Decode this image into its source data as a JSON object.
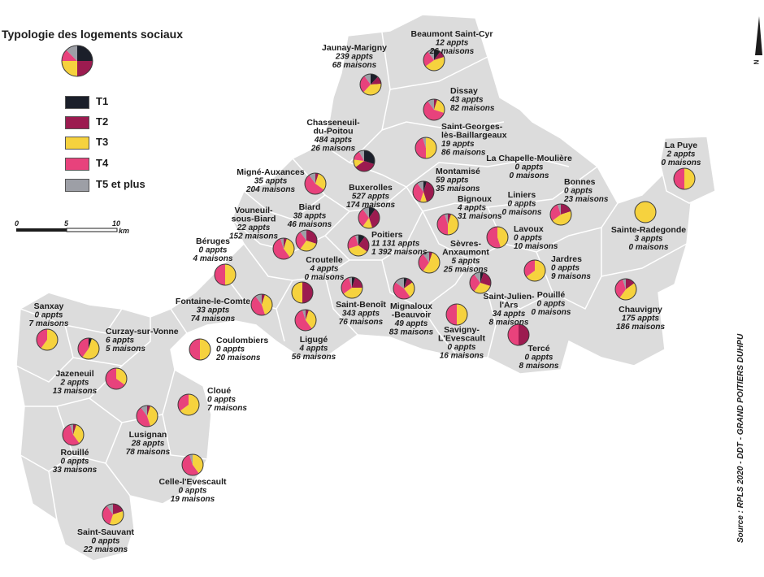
{
  "legend": {
    "title": "Typologie des logements sociaux",
    "items": [
      {
        "key": "t1",
        "label": "T1",
        "color": "#1b1f2a"
      },
      {
        "key": "t2",
        "label": "T2",
        "color": "#9c1b50"
      },
      {
        "key": "t3",
        "label": "T3",
        "color": "#f6d23e"
      },
      {
        "key": "t4",
        "label": "T4",
        "color": "#e8427c"
      },
      {
        "key": "t5",
        "label": "T5 et plus",
        "color": "#9d9fa6"
      }
    ]
  },
  "scale": {
    "ticks": [
      "0",
      "5",
      "10"
    ],
    "unit": "km"
  },
  "north": "N",
  "source": "Source : RPLS 2020 - DDT - GRAND POITIERS DUHPU",
  "colors": {
    "territory": "#dcdcdc",
    "border": "#ffffff",
    "text": "#1c1c1c"
  },
  "communes": [
    {
      "name": [
        "Jaunay-Marigny"
      ],
      "appts": "239 appts",
      "maisons": "68 maisons",
      "shares": [
        0.12,
        0.12,
        0.38,
        0.28,
        0.1
      ]
    },
    {
      "name": [
        "Beaumont Saint-Cyr"
      ],
      "appts": "12 appts",
      "maisons": "26 maisons",
      "shares": [
        0.1,
        0.1,
        0.45,
        0.25,
        0.1
      ]
    },
    {
      "name": [
        "Dissay"
      ],
      "appts": "43 appts",
      "maisons": "82 maisons",
      "shares": [
        0,
        0.05,
        0.25,
        0.6,
        0.1
      ]
    },
    {
      "name": [
        "Chasseneuil-",
        "du-Poitou"
      ],
      "appts": "484 appts",
      "maisons": "26 maisons",
      "shares": [
        0.3,
        0.35,
        0.12,
        0.15,
        0.08
      ]
    },
    {
      "name": [
        "Saint-Georges-",
        "lès-Baillargeaux"
      ],
      "appts": "19 appts",
      "maisons": "86 maisons",
      "shares": [
        0,
        0,
        0.5,
        0.45,
        0.05
      ]
    },
    {
      "name": [
        "La Chapelle-Moulière"
      ],
      "appts": "0 appts",
      "maisons": "0 maisons",
      "shares": []
    },
    {
      "name": [
        "La Puye"
      ],
      "appts": "2 appts",
      "maisons": "0 maisons",
      "shares": [
        0,
        0,
        0.5,
        0.5,
        0
      ]
    },
    {
      "name": [
        "Migné-Auxances"
      ],
      "appts": "35 appts",
      "maisons": "204 maisons",
      "shares": [
        0,
        0.05,
        0.3,
        0.55,
        0.1
      ]
    },
    {
      "name": [
        "Buxerolles"
      ],
      "appts": "527 appts",
      "maisons": "174 maisons",
      "shares": [
        0.1,
        0.35,
        0.15,
        0.3,
        0.1
      ]
    },
    {
      "name": [
        "Montamisé"
      ],
      "appts": "59 appts",
      "maisons": "35 maisons",
      "shares": [
        0.05,
        0.4,
        0.1,
        0.35,
        0.1
      ]
    },
    {
      "name": [
        "Liniers"
      ],
      "appts": "0 appts",
      "maisons": "0 maisons",
      "shares": []
    },
    {
      "name": [
        "Bonnes"
      ],
      "appts": "0 appts",
      "maisons": "23 maisons",
      "shares": [
        0,
        0.2,
        0.45,
        0.3,
        0.05
      ]
    },
    {
      "name": [
        "Biard"
      ],
      "appts": "38 appts",
      "maisons": "46 maisons",
      "shares": [
        0,
        0.3,
        0.3,
        0.3,
        0.1
      ]
    },
    {
      "name": [
        "Bignoux"
      ],
      "appts": "4 appts",
      "maisons": "31 maisons",
      "shares": [
        0,
        0.05,
        0.45,
        0.45,
        0.05
      ]
    },
    {
      "name": [
        "Vouneuil-",
        "sous-Biard"
      ],
      "appts": "22 appts",
      "maisons": "152 maisons",
      "shares": [
        0,
        0.05,
        0.35,
        0.55,
        0.05
      ]
    },
    {
      "name": [
        "Poitiers"
      ],
      "appts": "11 131 appts",
      "maisons": "1 392 maisons",
      "shares": [
        0.1,
        0.25,
        0.35,
        0.25,
        0.05
      ]
    },
    {
      "name": [
        "Sainte-Radegonde"
      ],
      "appts": "3 appts",
      "maisons": "0 maisons",
      "shares": [
        0,
        0,
        1,
        0,
        0
      ]
    },
    {
      "name": [
        "Béruges"
      ],
      "appts": "0 appts",
      "maisons": "4 maisons",
      "shares": [
        0,
        0,
        0.5,
        0.5,
        0
      ]
    },
    {
      "name": [
        "Lavoux"
      ],
      "appts": "0 appts",
      "maisons": "10 maisons",
      "shares": [
        0,
        0,
        0.45,
        0.55,
        0
      ]
    },
    {
      "name": [
        "Sèvres-",
        "Anxaumont"
      ],
      "appts": "5 appts",
      "maisons": "25 maisons",
      "shares": [
        0,
        0.05,
        0.55,
        0.3,
        0.1
      ]
    },
    {
      "name": [
        "Croutelle"
      ],
      "appts": "4 appts",
      "maisons": "0 maisons",
      "shares": [
        0,
        0.5,
        0.5,
        0,
        0
      ]
    },
    {
      "name": [
        "Jardres"
      ],
      "appts": "0 appts",
      "maisons": "9 maisons",
      "shares": [
        0,
        0,
        0.65,
        0.35,
        0
      ]
    },
    {
      "name": [
        "Fontaine-le-Comte"
      ],
      "appts": "33 appts",
      "maisons": "74 maisons",
      "shares": [
        0,
        0.05,
        0.4,
        0.45,
        0.1
      ]
    },
    {
      "name": [
        "Saint-Benoît"
      ],
      "appts": "343 appts",
      "maisons": "76 maisons",
      "shares": [
        0.05,
        0.2,
        0.4,
        0.3,
        0.05
      ]
    },
    {
      "name": [
        "Mignaloux",
        "-Beauvoir"
      ],
      "appts": "49 appts",
      "maisons": "83 maisons",
      "shares": [
        0.05,
        0.1,
        0.25,
        0.45,
        0.15
      ]
    },
    {
      "name": [
        "Saint-Julien-",
        "l'Ars"
      ],
      "appts": "34 appts",
      "maisons": "8 maisons",
      "shares": [
        0.05,
        0.25,
        0.3,
        0.3,
        0.1
      ]
    },
    {
      "name": [
        "Pouillé"
      ],
      "appts": "0 appts",
      "maisons": "0 maisons",
      "shares": []
    },
    {
      "name": [
        "Chauvigny"
      ],
      "appts": "175 appts",
      "maisons": "186 maisons",
      "shares": [
        0,
        0.15,
        0.45,
        0.35,
        0.05
      ]
    },
    {
      "name": [
        "Sanxay"
      ],
      "appts": "0 appts",
      "maisons": "7 maisons",
      "shares": [
        0,
        0,
        0.6,
        0.4,
        0
      ]
    },
    {
      "name": [
        "Curzay-sur-Vonne"
      ],
      "appts": "6 appts",
      "maisons": "5 maisons",
      "shares": [
        0.05,
        0,
        0.55,
        0.4,
        0
      ]
    },
    {
      "name": [
        "Coulombiers"
      ],
      "appts": "0 appts",
      "maisons": "20 maisons",
      "shares": [
        0,
        0,
        0.5,
        0.5,
        0
      ]
    },
    {
      "name": [
        "Ligugé"
      ],
      "appts": "4 appts",
      "maisons": "56 maisons",
      "shares": [
        0,
        0.05,
        0.35,
        0.55,
        0.05
      ]
    },
    {
      "name": [
        "Savigny-",
        "L'Evescault"
      ],
      "appts": "0 appts",
      "maisons": "16 maisons",
      "shares": [
        0,
        0,
        0.5,
        0.5,
        0
      ]
    },
    {
      "name": [
        "Tercé"
      ],
      "appts": "0 appts",
      "maisons": "8 maisons",
      "shares": [
        0,
        0.5,
        0,
        0.5,
        0
      ]
    },
    {
      "name": [
        "Jazeneuil"
      ],
      "appts": "2 appts",
      "maisons": "13 maisons",
      "shares": [
        0,
        0,
        0.35,
        0.65,
        0
      ]
    },
    {
      "name": [
        "Cloué"
      ],
      "appts": "0 appts",
      "maisons": "7 maisons",
      "shares": [
        0,
        0,
        0.65,
        0.35,
        0
      ]
    },
    {
      "name": [
        "Lusignan"
      ],
      "appts": "28 appts",
      "maisons": "78 maisons",
      "shares": [
        0,
        0.05,
        0.4,
        0.45,
        0.1
      ]
    },
    {
      "name": [
        "Rouillé"
      ],
      "appts": "0 appts",
      "maisons": "33 maisons",
      "shares": [
        0,
        0.05,
        0.35,
        0.55,
        0.05
      ]
    },
    {
      "name": [
        "Celle-l'Evescault"
      ],
      "appts": "0 appts",
      "maisons": "19 maisons",
      "shares": [
        0,
        0,
        0.4,
        0.55,
        0.05
      ]
    },
    {
      "name": [
        "Saint-Sauvant"
      ],
      "appts": "0 appts",
      "maisons": "22 maisons",
      "shares": [
        0,
        0.2,
        0.35,
        0.35,
        0.1
      ]
    }
  ]
}
